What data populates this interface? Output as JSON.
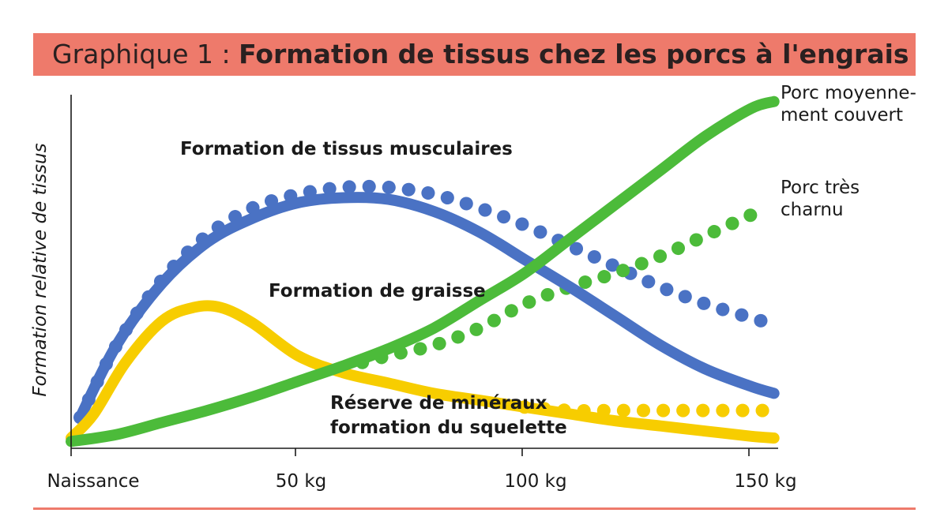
{
  "header": {
    "prefix": "Graphique 1 : ",
    "title": "Formation de tissus chez les porcs à l'engrais"
  },
  "colors": {
    "header_band": "#ee7a6b",
    "muscle": "#4a72c4",
    "fat": "#f7cd00",
    "pig": "#4cbb3a"
  },
  "chart_data": {
    "type": "line",
    "title": "Formation de tissus chez les porcs à l'engrais",
    "ylabel": "Formation relative de tissus",
    "xlabel": "",
    "x_ticks": [
      "Naissance",
      "50 kg",
      "100 kg",
      "150 kg"
    ],
    "xlim": [
      0,
      155
    ],
    "ylim": [
      0,
      100
    ],
    "grid": false,
    "yticks_shown": false,
    "annotations": [
      {
        "text": "Formation de tissus musculaires"
      },
      {
        "text": "Formation de graisse"
      },
      {
        "lines": [
          "Réserve de minéraux",
          "formation du squelette"
        ]
      },
      {
        "lines": [
          "Porc moyenne-",
          "ment couvert"
        ]
      },
      {
        "lines": [
          "Porc très",
          "charnu"
        ]
      }
    ],
    "series": [
      {
        "name": "Formation de tissus musculaires",
        "label": "Formation de tissus musculaires",
        "variant": "Porc moyennement couvert",
        "style": "solid",
        "color": "#4a72c4",
        "points": [
          [
            2,
            9
          ],
          [
            10,
            30
          ],
          [
            20,
            48
          ],
          [
            30,
            60
          ],
          [
            40,
            67
          ],
          [
            50,
            71.5
          ],
          [
            60,
            73
          ],
          [
            70,
            72.5
          ],
          [
            80,
            69
          ],
          [
            90,
            63
          ],
          [
            100,
            55
          ],
          [
            110,
            47
          ],
          [
            120,
            38.5
          ],
          [
            130,
            30
          ],
          [
            140,
            23
          ],
          [
            150,
            18
          ],
          [
            155,
            16
          ]
        ]
      },
      {
        "name": "Formation de tissus musculaires",
        "label": "Formation de tissus musculaires",
        "variant": "Porc très charnu",
        "style": "dotted",
        "color": "#4a72c4",
        "points": [
          [
            2,
            9
          ],
          [
            10,
            30
          ],
          [
            20,
            49
          ],
          [
            30,
            62
          ],
          [
            40,
            70
          ],
          [
            50,
            74
          ],
          [
            60,
            76
          ],
          [
            70,
            76
          ],
          [
            80,
            74
          ],
          [
            90,
            70
          ],
          [
            100,
            65
          ],
          [
            110,
            59
          ],
          [
            120,
            53
          ],
          [
            130,
            47
          ],
          [
            140,
            42
          ],
          [
            150,
            38
          ],
          [
            155,
            36
          ]
        ]
      },
      {
        "name": "Formation de graisse",
        "label": "Formation de graisse",
        "variant": "Porc moyennement couvert",
        "style": "solid",
        "color": "#f7cd00",
        "points": [
          [
            0,
            3
          ],
          [
            5,
            10
          ],
          [
            12,
            25
          ],
          [
            20,
            37
          ],
          [
            27,
            41
          ],
          [
            33,
            41
          ],
          [
            40,
            36.5
          ],
          [
            50,
            27
          ],
          [
            60,
            22
          ],
          [
            70,
            19
          ],
          [
            80,
            16
          ],
          [
            90,
            14
          ],
          [
            100,
            12
          ],
          [
            110,
            10
          ],
          [
            120,
            8
          ],
          [
            130,
            6.5
          ],
          [
            140,
            5
          ],
          [
            150,
            3.5
          ],
          [
            155,
            3
          ]
        ]
      },
      {
        "name": "Formation de graisse",
        "label": "Réserve de minéraux / formation du squelette",
        "variant": "Porc très charnu",
        "style": "dotted",
        "color": "#f7cd00",
        "points": [
          [
            100,
            12
          ],
          [
            110,
            11
          ],
          [
            120,
            11
          ],
          [
            130,
            11
          ],
          [
            140,
            11
          ],
          [
            150,
            11
          ],
          [
            155,
            11
          ]
        ]
      },
      {
        "name": "Porc moyennement couvert",
        "label": "Porc moyennement couvert",
        "style": "solid",
        "color": "#4cbb3a",
        "points": [
          [
            0,
            2
          ],
          [
            10,
            4
          ],
          [
            20,
            7.5
          ],
          [
            30,
            11
          ],
          [
            40,
            15
          ],
          [
            50,
            19.5
          ],
          [
            60,
            24
          ],
          [
            70,
            29
          ],
          [
            80,
            35
          ],
          [
            90,
            43
          ],
          [
            100,
            51
          ],
          [
            110,
            61
          ],
          [
            120,
            71
          ],
          [
            130,
            81
          ],
          [
            140,
            91
          ],
          [
            150,
            99
          ],
          [
            155,
            101
          ]
        ]
      },
      {
        "name": "Porc très charnu",
        "label": "Porc très charnu",
        "style": "dotted",
        "color": "#4cbb3a",
        "points": [
          [
            60,
            23.5
          ],
          [
            70,
            27
          ],
          [
            80,
            30
          ],
          [
            90,
            35
          ],
          [
            100,
            42
          ],
          [
            110,
            47
          ],
          [
            120,
            51
          ],
          [
            130,
            56
          ],
          [
            140,
            62
          ],
          [
            150,
            68
          ]
        ]
      }
    ]
  }
}
